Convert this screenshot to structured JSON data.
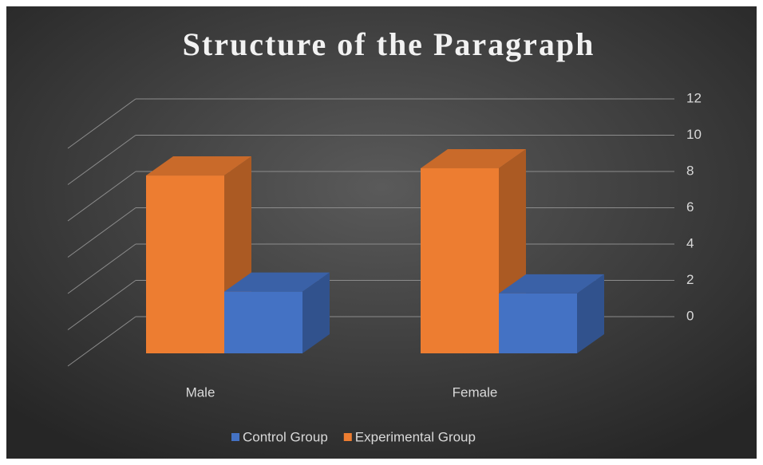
{
  "chart_data": {
    "type": "bar3d",
    "title": "Structure of the Paragraph",
    "categories": [
      "Male",
      "Female"
    ],
    "series": [
      {
        "name": "Control Group",
        "color": "#4472c4",
        "values": [
          3.4,
          3.3
        ]
      },
      {
        "name": "Experimental Group",
        "color": "#ed7d31",
        "values": [
          9.8,
          10.2
        ]
      }
    ],
    "ylim": [
      0,
      12
    ],
    "yticks": [
      0,
      2,
      4,
      6,
      8,
      10,
      12
    ],
    "grid": true,
    "legend": "bottom"
  }
}
